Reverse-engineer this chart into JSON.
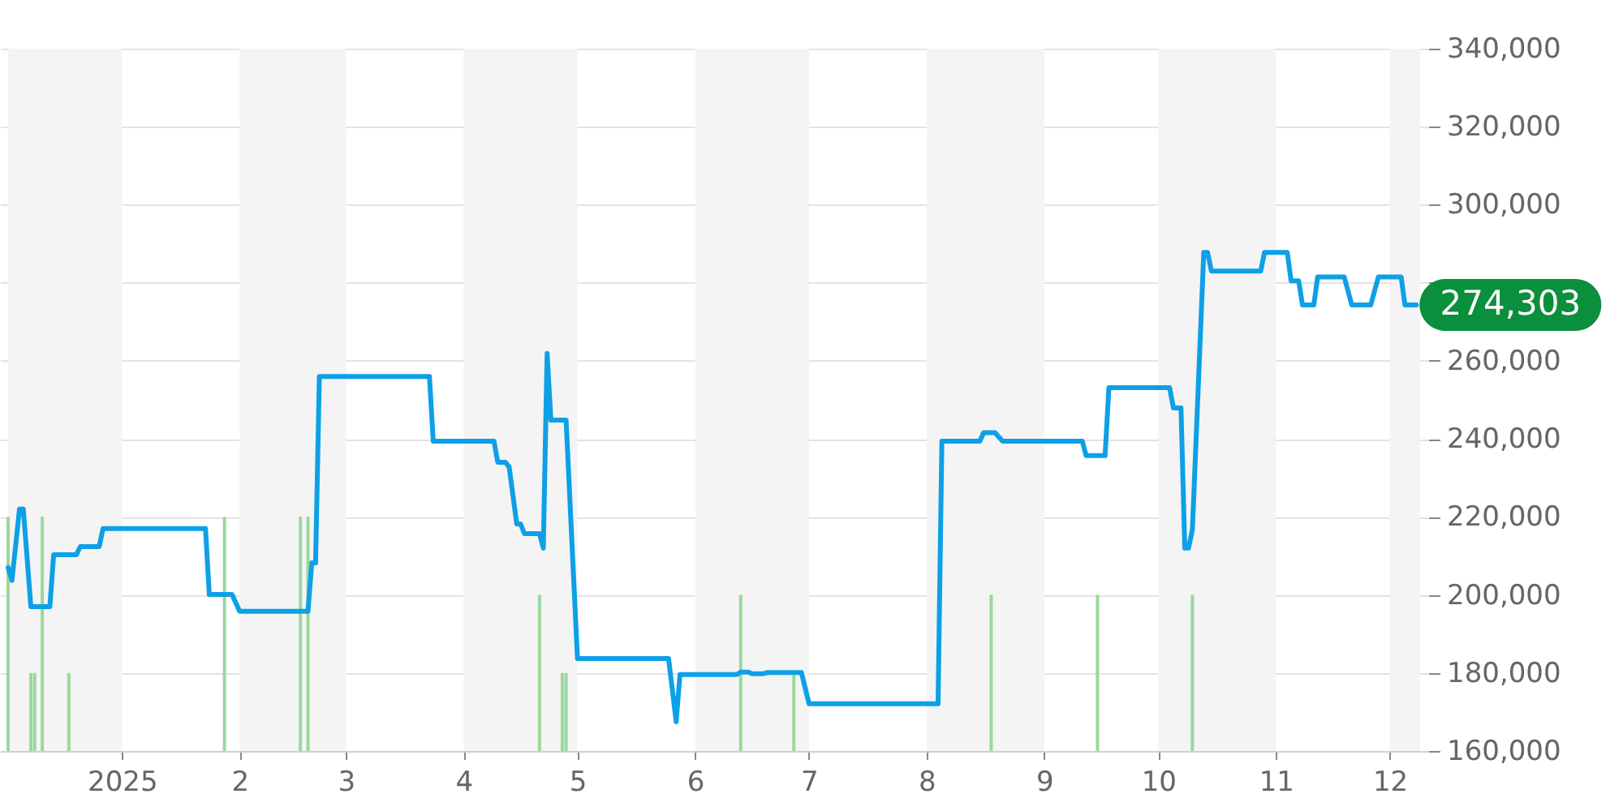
{
  "chart_data": {
    "type": "line",
    "xlim": [
      "2024-12-02",
      "2025-12-09"
    ],
    "xticks": [
      {
        "value": "2025-01-01",
        "label": "2025"
      },
      {
        "value": "2025-02-01",
        "label": "2"
      },
      {
        "value": "2025-03-01",
        "label": "3"
      },
      {
        "value": "2025-04-01",
        "label": "4"
      },
      {
        "value": "2025-05-01",
        "label": "5"
      },
      {
        "value": "2025-06-01",
        "label": "6"
      },
      {
        "value": "2025-07-01",
        "label": "7"
      },
      {
        "value": "2025-08-01",
        "label": "8"
      },
      {
        "value": "2025-09-01",
        "label": "9"
      },
      {
        "value": "2025-10-01",
        "label": "10"
      },
      {
        "value": "2025-11-01",
        "label": "11"
      },
      {
        "value": "2025-12-01",
        "label": "12"
      }
    ],
    "ylim": [
      160000,
      340000
    ],
    "yticks": [
      {
        "value": 160000,
        "label": "160,000"
      },
      {
        "value": 180000,
        "label": "180,000"
      },
      {
        "value": 200000,
        "label": "200,000"
      },
      {
        "value": 220000,
        "label": "220,000"
      },
      {
        "value": 240000,
        "label": "240,000"
      },
      {
        "value": 260000,
        "label": "260,000"
      },
      {
        "value": 280000,
        "label": null
      },
      {
        "value": 300000,
        "label": "300,000"
      },
      {
        "value": 320000,
        "label": "320,000"
      },
      {
        "value": 340000,
        "label": "340,000"
      }
    ],
    "grid": "y",
    "bands": [
      {
        "axis": "x",
        "from": "2024-12-02",
        "to": "2025-01-01",
        "color": "#f4f4f4"
      },
      {
        "axis": "x",
        "from": "2025-02-01",
        "to": "2025-03-01",
        "color": "#f4f4f4"
      },
      {
        "axis": "x",
        "from": "2025-04-01",
        "to": "2025-05-01",
        "color": "#f4f4f4"
      },
      {
        "axis": "x",
        "from": "2025-06-01",
        "to": "2025-07-01",
        "color": "#f4f4f4"
      },
      {
        "axis": "x",
        "from": "2025-08-01",
        "to": "2025-09-01",
        "color": "#f4f4f4"
      },
      {
        "axis": "x",
        "from": "2025-10-01",
        "to": "2025-11-01",
        "color": "#f4f4f4"
      },
      {
        "axis": "x",
        "from": "2025-12-01",
        "to": "2025-12-09",
        "color": "#f4f4f4"
      }
    ],
    "annotations": [
      {
        "text": "274,303",
        "x": "2025-12-08",
        "y": 274303
      }
    ],
    "series": [
      {
        "type": "bar",
        "color": "#9ad89c",
        "x": [
          "2024-12-02",
          "2024-12-08",
          "2024-12-09",
          "2024-12-11",
          "2024-12-18",
          "2025-01-28",
          "2025-02-17",
          "2025-02-19",
          "2025-04-21",
          "2025-04-27",
          "2025-04-28",
          "2025-06-13",
          "2025-06-27",
          "2025-08-18",
          "2025-09-15",
          "2025-10-10"
        ],
        "values": [
          220000,
          180000,
          180000,
          220000,
          180000,
          220000,
          220000,
          220000,
          200000,
          180000,
          180000,
          200000,
          180000,
          200000,
          200000,
          200000
        ]
      },
      {
        "color": "#0ea0e6",
        "x": [
          "2024-12-02",
          "2024-12-03",
          "2024-12-05",
          "2024-12-06",
          "2024-12-08",
          "2024-12-13",
          "2024-12-14",
          "2024-12-20",
          "2024-12-21",
          "2024-12-26",
          "2024-12-27",
          "2025-01-23",
          "2025-01-24",
          "2025-01-30",
          "2025-02-01",
          "2025-02-19",
          "2025-02-20",
          "2025-02-21",
          "2025-02-22",
          "2025-03-23",
          "2025-03-24",
          "2025-04-09",
          "2025-04-10",
          "2025-04-12",
          "2025-04-13",
          "2025-04-15",
          "2025-04-16",
          "2025-04-17",
          "2025-04-21",
          "2025-04-22",
          "2025-04-23",
          "2025-04-24",
          "2025-04-28",
          "2025-05-01",
          "2025-05-25",
          "2025-05-27",
          "2025-05-28",
          "2025-06-12",
          "2025-06-13",
          "2025-06-15",
          "2025-06-16",
          "2025-06-19",
          "2025-06-20",
          "2025-06-29",
          "2025-07-01",
          "2025-08-04",
          "2025-08-05",
          "2025-08-15",
          "2025-08-16",
          "2025-08-19",
          "2025-08-21",
          "2025-09-11",
          "2025-09-12",
          "2025-09-17",
          "2025-09-18",
          "2025-10-04",
          "2025-10-05",
          "2025-10-07",
          "2025-10-08",
          "2025-10-09",
          "2025-10-10",
          "2025-10-13",
          "2025-10-14",
          "2025-10-15",
          "2025-10-28",
          "2025-10-29",
          "2025-11-04",
          "2025-11-05",
          "2025-11-07",
          "2025-11-08",
          "2025-11-11",
          "2025-11-12",
          "2025-11-19",
          "2025-11-21",
          "2025-11-26",
          "2025-11-28",
          "2025-12-04",
          "2025-12-05",
          "2025-12-08"
        ],
        "values": [
          207000,
          203700,
          222000,
          222000,
          197000,
          197000,
          210300,
          210300,
          212400,
          212400,
          217000,
          217000,
          200100,
          200100,
          195800,
          195800,
          208200,
          208200,
          256000,
          256000,
          239400,
          239400,
          234000,
          234000,
          232800,
          218200,
          218200,
          215700,
          215700,
          212000,
          261900,
          244800,
          244800,
          183700,
          183700,
          167500,
          179600,
          179600,
          180200,
          180200,
          179800,
          179800,
          180100,
          180100,
          172100,
          172100,
          239400,
          239400,
          241600,
          241600,
          239400,
          239400,
          235700,
          235700,
          253100,
          253100,
          247900,
          247900,
          212000,
          212000,
          216700,
          287800,
          287800,
          283000,
          283000,
          287800,
          287800,
          280500,
          280500,
          274303,
          274303,
          281500,
          281500,
          274303,
          274303,
          281500,
          281500,
          274303,
          274303
        ]
      }
    ]
  }
}
